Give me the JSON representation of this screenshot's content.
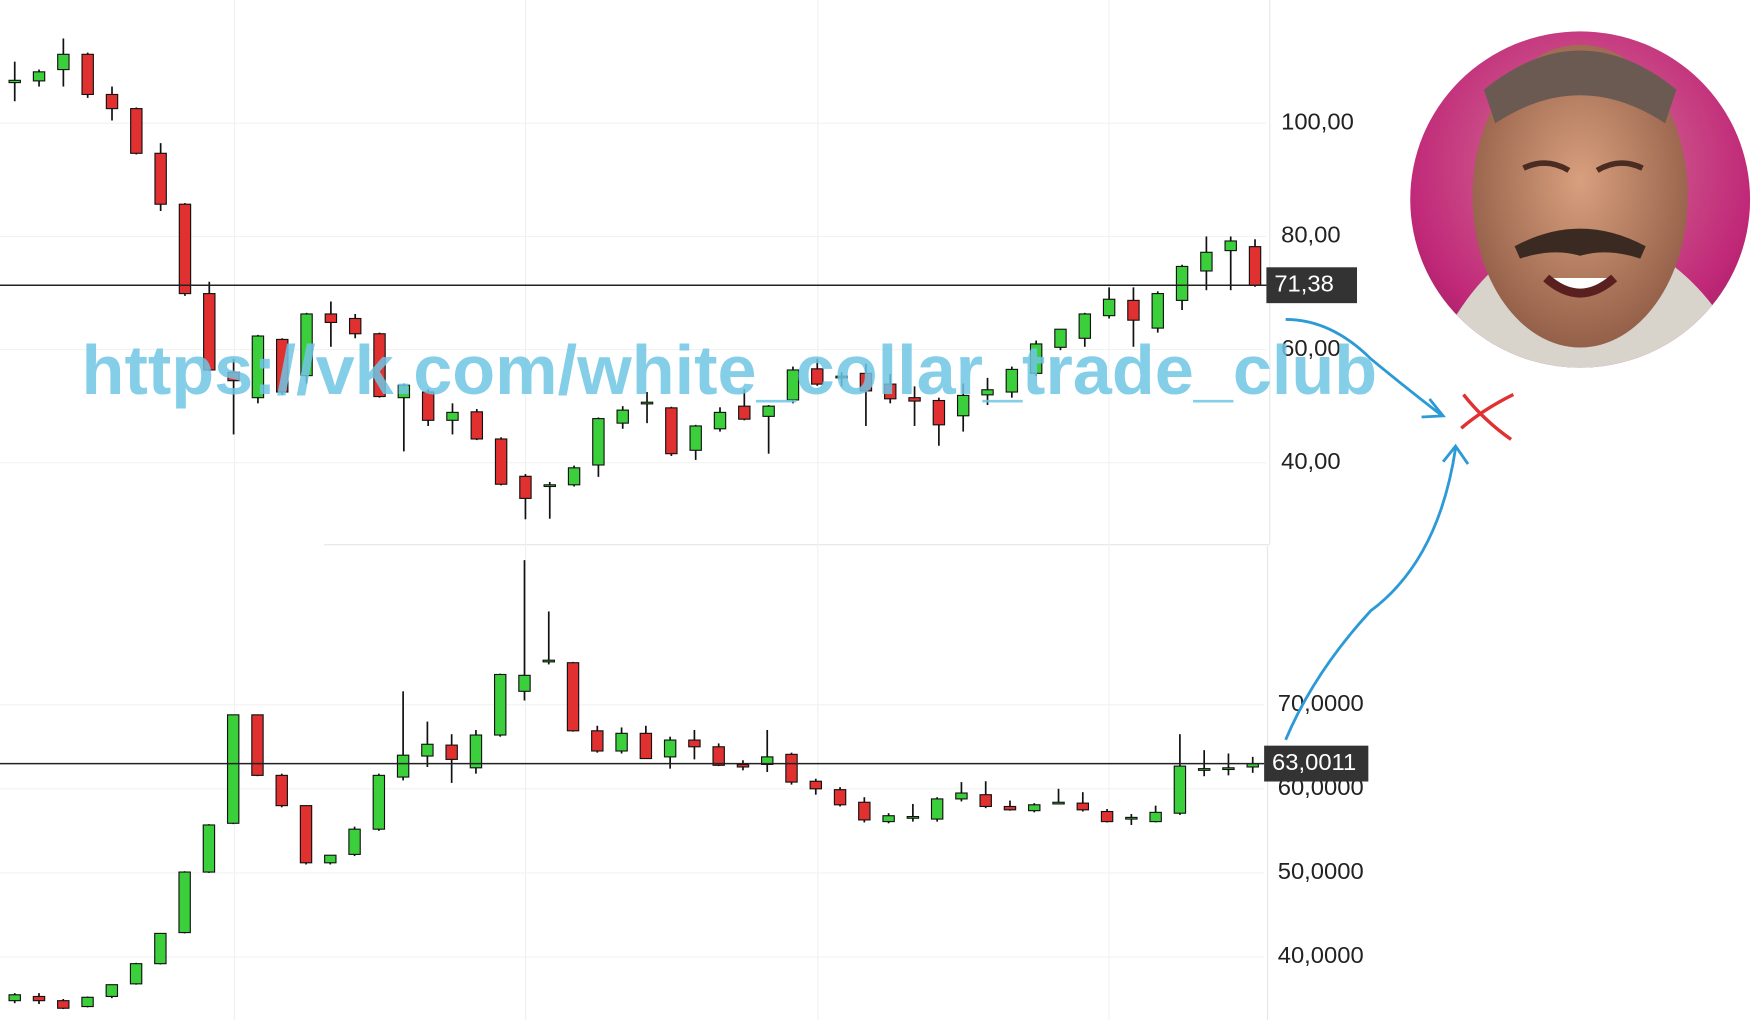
{
  "chart_data": [
    {
      "type": "candlestick",
      "up_color": "#3ccf3c",
      "down_color": "#e03030",
      "grid": true,
      "ylim": [
        25.7,
        121.8
      ],
      "yticks": [
        {
          "value": 40,
          "label": "40,00"
        },
        {
          "value": 60,
          "label": "60,00"
        },
        {
          "value": 80,
          "label": "80,00"
        },
        {
          "value": 100,
          "label": "100,00"
        }
      ],
      "last_price": {
        "value": 71.38,
        "label": "71,38"
      },
      "open": [
        107.2,
        107.5,
        109.5,
        112.2,
        105.1,
        102.6,
        94.7,
        85.7,
        69.9,
        56,
        51.5,
        61.8,
        55.4,
        66.3,
        65.5,
        62.8,
        51.5,
        52.5,
        47.5,
        49,
        44.2,
        37.6,
        35.9,
        36.1,
        39.6,
        47,
        50.5,
        49.7,
        42.2,
        46,
        50,
        48.2,
        51.1,
        56.6,
        55.1,
        55.8,
        53.9,
        51.5,
        51,
        48.3,
        52,
        52.5,
        55.8,
        60.4,
        62,
        66,
        68.7,
        63.8,
        68.7,
        73.9,
        77.5,
        78.2
      ],
      "high": [
        110.9,
        109.5,
        115,
        112.5,
        106.5,
        102.8,
        96.5,
        85.9,
        72,
        58.4,
        62.6,
        62,
        66.5,
        68.5,
        66.3,
        63,
        54,
        53,
        50.5,
        49.5,
        44.5,
        38,
        36.6,
        39.5,
        48,
        50,
        52.5,
        49.9,
        46.7,
        49.8,
        53,
        50.2,
        57,
        58.4,
        56,
        57.5,
        55.7,
        53.5,
        51.5,
        54,
        55,
        57,
        61.6,
        63.6,
        66.5,
        71,
        71,
        70.3,
        75,
        80,
        80,
        79.5
      ],
      "low": [
        103.9,
        106.5,
        106.5,
        104.5,
        100.5,
        94.5,
        84.5,
        69.5,
        56.2,
        45,
        50.5,
        52,
        54,
        60.5,
        62,
        51.5,
        42,
        46.5,
        45,
        44,
        36,
        30,
        30.1,
        35.8,
        37.5,
        46,
        47,
        41.2,
        40.5,
        45.5,
        47.5,
        41.6,
        50.5,
        53.6,
        53.5,
        46.5,
        50.5,
        46.5,
        43,
        45.5,
        50.2,
        51.5,
        55.3,
        59.9,
        60.5,
        65.5,
        60.5,
        63,
        67,
        70.5,
        70.5,
        71.1
      ],
      "close": [
        107.6,
        109.1,
        112.2,
        105.1,
        102.6,
        94.7,
        85.7,
        69.9,
        56.4,
        54.5,
        62.4,
        52.5,
        66.3,
        64.8,
        62.8,
        51.7,
        53.7,
        47.5,
        48.9,
        44.2,
        36.2,
        33.7,
        36.1,
        39.1,
        47.8,
        49.3,
        50.7,
        41.6,
        46.5,
        48.9,
        47.7,
        50,
        56.4,
        53.9,
        55.3,
        52.7,
        51.3,
        50.9,
        46.7,
        51.9,
        52.9,
        56.5,
        61,
        63.6,
        66.3,
        68.9,
        65.2,
        69.9,
        74.7,
        77.2,
        79.2,
        71.38
      ]
    },
    {
      "type": "candlestick",
      "up_color": "#3ccf3c",
      "down_color": "#e03030",
      "grid": true,
      "ylim": [
        32.5,
        88.9
      ],
      "yticks": [
        {
          "value": 40,
          "label": "40,0000"
        },
        {
          "value": 50,
          "label": "50,0000"
        },
        {
          "value": 60,
          "label": "60,0000"
        },
        {
          "value": 70,
          "label": "70,0000"
        }
      ],
      "last_price": {
        "value": 63.0011,
        "label": "63,0011"
      },
      "open": [
        34.8,
        35.3,
        34.8,
        34.1,
        35.3,
        36.8,
        39.2,
        42.9,
        50.1,
        55.9,
        68.8,
        61.6,
        58,
        51.2,
        52.2,
        55.2,
        61.4,
        63.9,
        65.2,
        62.5,
        66.4,
        71.6,
        75.1,
        75,
        66.9,
        64.5,
        66.6,
        63.8,
        65.8,
        65,
        62.9,
        62.9,
        64.1,
        60.9,
        59.9,
        58.4,
        56.1,
        56.5,
        56.4,
        58.8,
        59.3,
        57.9,
        57.4,
        58.3,
        58.3,
        57.3,
        56.5,
        56.1,
        57.1,
        62.2,
        62.3,
        62.6
      ],
      "high": [
        35.7,
        35.7,
        35,
        35.3,
        36.7,
        39.3,
        42.8,
        50.2,
        55.8,
        68.8,
        68.8,
        61.8,
        58,
        52,
        55.5,
        61.8,
        71.6,
        68,
        66.5,
        67,
        73.7,
        87.2,
        81.1,
        75.1,
        67.5,
        67.3,
        67.5,
        66.2,
        67,
        65.4,
        63.4,
        67,
        64.3,
        61.2,
        60.2,
        59,
        57.1,
        58.2,
        59,
        60.8,
        60.9,
        58.6,
        58.3,
        60,
        59.6,
        57.6,
        57,
        58,
        66.5,
        64.6,
        64.2,
        63.8
      ],
      "low": [
        34.5,
        34.4,
        33.8,
        34,
        35.1,
        36.7,
        39.1,
        42.8,
        50,
        55.8,
        61.5,
        57.8,
        51,
        51,
        52,
        55,
        61,
        62.6,
        60.7,
        61.8,
        66.2,
        70.5,
        74.8,
        66.8,
        64.3,
        64.2,
        63.6,
        62.4,
        63.5,
        62.7,
        62.2,
        62,
        60.5,
        59.3,
        57.9,
        56,
        55.9,
        56.1,
        56.1,
        58.5,
        57.7,
        57.4,
        57.2,
        58.2,
        57.3,
        56,
        55.7,
        56,
        56.9,
        61.5,
        61.6,
        61.9
      ],
      "close": [
        35.5,
        34.8,
        33.9,
        35.2,
        36.7,
        39.2,
        42.8,
        50.1,
        55.7,
        68.8,
        61.6,
        58,
        51.2,
        52.1,
        55.2,
        61.6,
        64,
        65.3,
        63.5,
        66.4,
        73.6,
        73.5,
        75.3,
        66.9,
        64.5,
        66.6,
        63.6,
        65.8,
        65,
        62.8,
        62.6,
        63.8,
        60.8,
        60,
        58.1,
        56.3,
        56.8,
        56.7,
        58.8,
        59.5,
        57.9,
        57.5,
        58.1,
        58.4,
        57.5,
        56.1,
        56.6,
        57.2,
        62.7,
        62.4,
        62.5,
        63.0011
      ]
    }
  ],
  "watermark": "https://vk.com/white_collar_trade_club"
}
